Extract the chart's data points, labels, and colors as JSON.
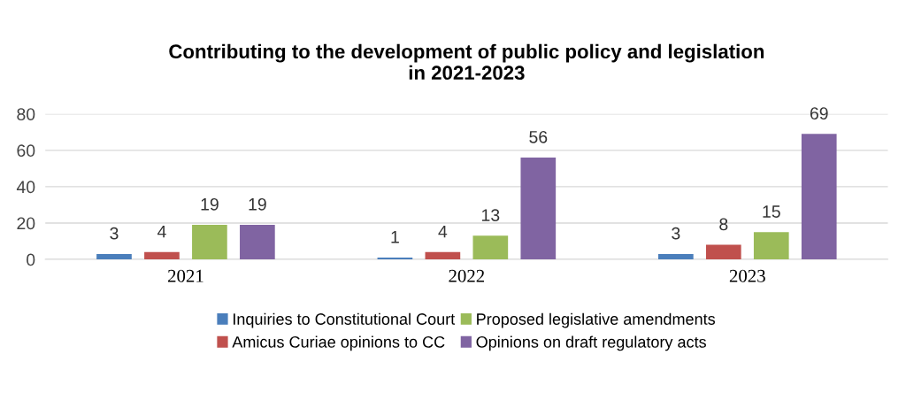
{
  "chart_data": {
    "type": "bar",
    "title": "Contributing to the development of public policy and legislation\nin 2021-2023",
    "categories": [
      "2021",
      "2022",
      "2023"
    ],
    "series": [
      {
        "name": "Inquiries to Constitutional Court",
        "color": "#4a7ebb",
        "values": [
          3,
          1,
          3
        ]
      },
      {
        "name": "Amicus Curiae opinions to CC",
        "color": "#c0504d",
        "values": [
          4,
          4,
          8
        ]
      },
      {
        "name": "Proposed legislative amendments",
        "color": "#9bbb59",
        "values": [
          19,
          13,
          15
        ]
      },
      {
        "name": "Opinions on draft regulatory acts",
        "color": "#8064a2",
        "values": [
          19,
          56,
          69
        ]
      }
    ],
    "ylim": [
      0,
      80
    ],
    "yticks": [
      0,
      20,
      40,
      60,
      80
    ],
    "grid": "y",
    "legend": "bottom",
    "data_labels": true
  }
}
